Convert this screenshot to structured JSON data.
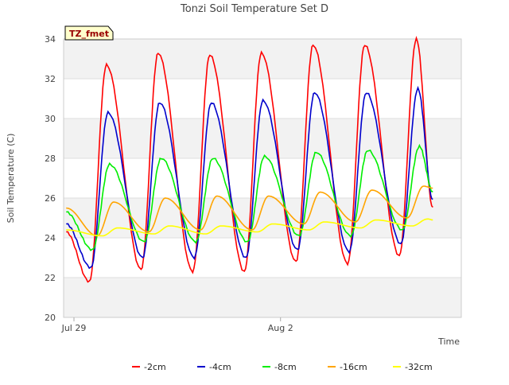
{
  "chart_data": {
    "type": "line",
    "title": "Tonzi Soil Temperature Set D",
    "xlabel": "Time",
    "ylabel": "Soil Temperature (C)",
    "site_label": "TZ_fmet",
    "ylim": [
      20,
      34
    ],
    "yticks": [
      20,
      22,
      24,
      26,
      28,
      30,
      32,
      34
    ],
    "xlim": [
      -0.2,
      7.5
    ],
    "xticks": [
      {
        "label": "Jul 29",
        "day": 0
      },
      {
        "label": "Aug 2",
        "day": 4
      }
    ],
    "grid": true,
    "legend_position": "bottom",
    "colors": {
      "-2cm": "#ff0000",
      "-4cm": "#0000cc",
      "-8cm": "#00ee00",
      "-16cm": "#ffa500",
      "-32cm": "#ffff00"
    },
    "series": [
      {
        "name": "-2cm",
        "color": "#ff0000",
        "min": [
          21.8,
          22.4,
          22.3,
          22.3,
          22.8,
          22.7,
          23.1
        ],
        "max": [
          32.7,
          33.3,
          33.2,
          33.3,
          33.7,
          33.7,
          34.0
        ],
        "start": 24.3,
        "end": 25.5
      },
      {
        "name": "-4cm",
        "color": "#0000cc",
        "min": [
          22.5,
          23.0,
          23.0,
          23.0,
          23.4,
          23.3,
          23.7
        ],
        "max": [
          30.3,
          30.8,
          30.8,
          30.9,
          31.3,
          31.3,
          31.5
        ],
        "start": 24.7,
        "end": 25.9
      },
      {
        "name": "-8cm",
        "color": "#00ee00",
        "min": [
          23.4,
          23.8,
          23.8,
          23.8,
          24.1,
          24.1,
          24.4
        ],
        "max": [
          27.7,
          28.0,
          28.0,
          28.1,
          28.3,
          28.4,
          28.6
        ],
        "start": 25.3,
        "end": 26.3
      },
      {
        "name": "-16cm",
        "color": "#ffa500",
        "min": [
          24.1,
          24.3,
          24.4,
          24.4,
          24.7,
          24.8,
          25.0
        ],
        "max": [
          25.8,
          26.0,
          26.1,
          26.1,
          26.3,
          26.4,
          26.6
        ],
        "start": 25.5,
        "end": 26.5
      },
      {
        "name": "-32cm",
        "color": "#ffff00",
        "min": [
          24.1,
          24.2,
          24.2,
          24.3,
          24.4,
          24.5,
          24.6
        ],
        "max": [
          24.5,
          24.6,
          24.6,
          24.7,
          24.8,
          24.9,
          24.95
        ],
        "start": 24.4,
        "end": 24.9
      }
    ]
  }
}
